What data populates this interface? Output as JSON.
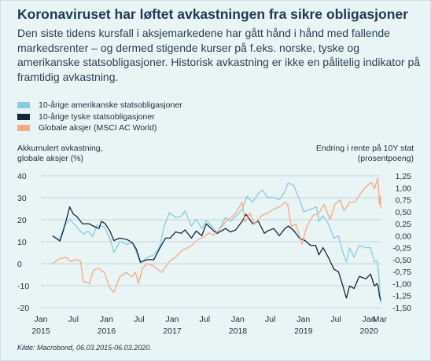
{
  "title": "Koronaviruset har løftet avkastningen fra sikre obligasjoner",
  "subtitle": "Den siste tidens kursfall i aksjemarkedene har gått hånd i hånd med fallende markedsrenter – og dermed stigende kurser på f.eks. norske, tyske og amerikanske statsobligasjoner. Historisk avkastning er ikke en pålitelig indikator på framtidig avkastning.",
  "source": "Kilde: Macrobond, 06.03.2015-06.03.2020.",
  "colors": {
    "background": "#e9f4f5",
    "us_bonds": "#86cde0",
    "de_bonds": "#14243d",
    "global_equities": "#f4ab85",
    "grid": "#c5d5d9"
  },
  "chart_data": {
    "type": "line",
    "left_axis_title": [
      "Akkumulert avkastning,",
      "globale aksjer (%)"
    ],
    "right_axis_title": [
      "Endring i rente på 10Y stat",
      "(prosentpoeng)"
    ],
    "left_ylim": [
      -20,
      40
    ],
    "left_ticks": [
      "40",
      "30",
      "20",
      "10",
      "0",
      "-10",
      "-20"
    ],
    "right_ylim": [
      -1.5,
      1.25
    ],
    "right_ticks": [
      "1,25",
      "1,00",
      "0,75",
      "0,50",
      "0,25",
      "0,00",
      "-0,25",
      "-0,50",
      "-0,75",
      "-1,00",
      "-1,25",
      "-1,50"
    ],
    "x_ticks": [
      {
        "date": "2015-01-01",
        "label": "Jan",
        "year": "2015"
      },
      {
        "date": "2015-07-01",
        "label": "Jul",
        "year": ""
      },
      {
        "date": "2016-01-01",
        "label": "Jan",
        "year": "2016"
      },
      {
        "date": "2016-07-01",
        "label": "Jul",
        "year": ""
      },
      {
        "date": "2017-01-01",
        "label": "Jan",
        "year": "2017"
      },
      {
        "date": "2017-07-01",
        "label": "Jul",
        "year": ""
      },
      {
        "date": "2018-01-01",
        "label": "Jan",
        "year": "2018"
      },
      {
        "date": "2018-07-01",
        "label": "Jul",
        "year": ""
      },
      {
        "date": "2019-01-01",
        "label": "Jan",
        "year": "2019"
      },
      {
        "date": "2019-07-01",
        "label": "Jul",
        "year": ""
      },
      {
        "date": "2020-01-01",
        "label": "Jan",
        "year": "2020"
      },
      {
        "date": "2020-03-01",
        "label": "Mar",
        "year": ""
      }
    ],
    "x_range": [
      "2015-01-01",
      "2020-03-06"
    ],
    "grid": "horizontal",
    "legend_position": "top-left",
    "series": [
      {
        "name": "10-årige amerikanske statsobligasjoner",
        "axis": "right",
        "color": "#86cde0",
        "points": [
          [
            "2015-03-06",
            0.0
          ],
          [
            "2015-04-15",
            -0.08
          ],
          [
            "2015-05-10",
            0.18
          ],
          [
            "2015-06-10",
            0.35
          ],
          [
            "2015-07-15",
            0.2
          ],
          [
            "2015-08-25",
            0.03
          ],
          [
            "2015-09-20",
            0.1
          ],
          [
            "2015-10-15",
            -0.02
          ],
          [
            "2015-11-10",
            0.22
          ],
          [
            "2015-12-20",
            0.18
          ],
          [
            "2016-01-20",
            -0.05
          ],
          [
            "2016-02-11",
            -0.35
          ],
          [
            "2016-03-15",
            -0.12
          ],
          [
            "2016-04-25",
            -0.18
          ],
          [
            "2016-05-25",
            -0.15
          ],
          [
            "2016-06-27",
            -0.45
          ],
          [
            "2016-07-08",
            -0.58
          ],
          [
            "2016-08-15",
            -0.45
          ],
          [
            "2016-09-20",
            -0.4
          ],
          [
            "2016-10-25",
            -0.22
          ],
          [
            "2016-11-15",
            0.18
          ],
          [
            "2016-12-16",
            0.48
          ],
          [
            "2017-01-20",
            0.38
          ],
          [
            "2017-02-20",
            0.4
          ],
          [
            "2017-03-13",
            0.52
          ],
          [
            "2017-04-18",
            0.2
          ],
          [
            "2017-05-15",
            0.35
          ],
          [
            "2017-06-14",
            0.15
          ],
          [
            "2017-07-10",
            0.32
          ],
          [
            "2017-08-20",
            0.15
          ],
          [
            "2017-09-08",
            0.05
          ],
          [
            "2017-10-25",
            0.38
          ],
          [
            "2017-11-20",
            0.3
          ],
          [
            "2017-12-20",
            0.4
          ],
          [
            "2018-01-25",
            0.55
          ],
          [
            "2018-02-21",
            0.82
          ],
          [
            "2018-03-25",
            0.7
          ],
          [
            "2018-04-25",
            0.88
          ],
          [
            "2018-05-17",
            0.95
          ],
          [
            "2018-06-15",
            0.8
          ],
          [
            "2018-07-20",
            0.8
          ],
          [
            "2018-08-20",
            0.75
          ],
          [
            "2018-09-20",
            0.92
          ],
          [
            "2018-10-08",
            1.1
          ],
          [
            "2018-11-08",
            1.05
          ],
          [
            "2018-12-10",
            0.75
          ],
          [
            "2019-01-03",
            0.5
          ],
          [
            "2019-02-10",
            0.55
          ],
          [
            "2019-03-15",
            0.6
          ],
          [
            "2019-03-28",
            0.3
          ],
          [
            "2019-04-20",
            0.42
          ],
          [
            "2019-05-20",
            0.25
          ],
          [
            "2019-06-20",
            -0.05
          ],
          [
            "2019-07-15",
            0.0
          ],
          [
            "2019-08-05",
            -0.3
          ],
          [
            "2019-08-28",
            -0.55
          ],
          [
            "2019-09-15",
            -0.25
          ],
          [
            "2019-10-10",
            -0.45
          ],
          [
            "2019-11-08",
            -0.2
          ],
          [
            "2019-12-15",
            -0.25
          ],
          [
            "2020-01-10",
            -0.25
          ],
          [
            "2020-01-31",
            -0.55
          ],
          [
            "2020-02-14",
            -0.52
          ],
          [
            "2020-02-21",
            -0.65
          ],
          [
            "2020-02-28",
            -1.0
          ],
          [
            "2020-03-06",
            -1.4
          ]
        ]
      },
      {
        "name": "10-årige tyske statsobligasjoner",
        "axis": "right",
        "color": "#14243d",
        "points": [
          [
            "2015-03-06",
            0.0
          ],
          [
            "2015-03-25",
            -0.05
          ],
          [
            "2015-04-17",
            -0.11
          ],
          [
            "2015-05-01",
            0.05
          ],
          [
            "2015-05-20",
            0.3
          ],
          [
            "2015-06-10",
            0.6
          ],
          [
            "2015-07-01",
            0.45
          ],
          [
            "2015-07-20",
            0.4
          ],
          [
            "2015-08-20",
            0.25
          ],
          [
            "2015-09-25",
            0.25
          ],
          [
            "2015-10-20",
            0.2
          ],
          [
            "2015-11-20",
            0.15
          ],
          [
            "2015-12-04",
            0.3
          ],
          [
            "2015-12-25",
            0.25
          ],
          [
            "2016-01-20",
            0.1
          ],
          [
            "2016-02-11",
            -0.1
          ],
          [
            "2016-03-15",
            -0.05
          ],
          [
            "2016-04-25",
            -0.08
          ],
          [
            "2016-05-25",
            -0.15
          ],
          [
            "2016-06-15",
            -0.28
          ],
          [
            "2016-07-08",
            -0.55
          ],
          [
            "2016-08-15",
            -0.5
          ],
          [
            "2016-09-20",
            -0.5
          ],
          [
            "2016-10-25",
            -0.25
          ],
          [
            "2016-11-25",
            -0.05
          ],
          [
            "2016-12-20",
            -0.05
          ],
          [
            "2017-01-20",
            0.08
          ],
          [
            "2017-02-20",
            0.05
          ],
          [
            "2017-03-13",
            0.12
          ],
          [
            "2017-04-18",
            -0.05
          ],
          [
            "2017-05-15",
            0.1
          ],
          [
            "2017-06-14",
            0.0
          ],
          [
            "2017-07-10",
            0.25
          ],
          [
            "2017-08-20",
            0.1
          ],
          [
            "2017-09-08",
            0.05
          ],
          [
            "2017-10-25",
            0.15
          ],
          [
            "2017-11-20",
            0.08
          ],
          [
            "2017-12-20",
            0.12
          ],
          [
            "2018-01-25",
            0.3
          ],
          [
            "2018-02-15",
            0.45
          ],
          [
            "2018-03-25",
            0.25
          ],
          [
            "2018-04-25",
            0.3
          ],
          [
            "2018-05-29",
            0.05
          ],
          [
            "2018-06-15",
            0.1
          ],
          [
            "2018-07-20",
            0.15
          ],
          [
            "2018-08-20",
            0.0
          ],
          [
            "2018-09-20",
            0.15
          ],
          [
            "2018-10-10",
            0.2
          ],
          [
            "2018-11-10",
            0.1
          ],
          [
            "2018-12-10",
            -0.05
          ],
          [
            "2019-01-10",
            -0.1
          ],
          [
            "2019-02-10",
            -0.2
          ],
          [
            "2019-03-10",
            -0.2
          ],
          [
            "2019-03-28",
            -0.4
          ],
          [
            "2019-04-20",
            -0.25
          ],
          [
            "2019-05-20",
            -0.45
          ],
          [
            "2019-06-20",
            -0.7
          ],
          [
            "2019-07-15",
            -0.75
          ],
          [
            "2019-08-05",
            -1.0
          ],
          [
            "2019-08-28",
            -1.3
          ],
          [
            "2019-09-15",
            -1.05
          ],
          [
            "2019-10-10",
            -1.1
          ],
          [
            "2019-11-08",
            -0.85
          ],
          [
            "2019-12-15",
            -0.9
          ],
          [
            "2020-01-10",
            -0.8
          ],
          [
            "2020-01-31",
            -1.05
          ],
          [
            "2020-02-14",
            -1.0
          ],
          [
            "2020-02-21",
            -1.05
          ],
          [
            "2020-02-28",
            -1.25
          ],
          [
            "2020-03-06",
            -1.35
          ]
        ]
      },
      {
        "name": "Globale aksjer (MSCI AC World)",
        "axis": "left",
        "color": "#f4ab85",
        "points": [
          [
            "2015-03-06",
            0
          ],
          [
            "2015-04-10",
            2
          ],
          [
            "2015-05-20",
            3
          ],
          [
            "2015-06-15",
            1
          ],
          [
            "2015-07-20",
            2
          ],
          [
            "2015-08-10",
            1
          ],
          [
            "2015-08-25",
            -8
          ],
          [
            "2015-09-29",
            -9
          ],
          [
            "2015-10-20",
            -3
          ],
          [
            "2015-11-15",
            -2
          ],
          [
            "2015-12-20",
            -4
          ],
          [
            "2016-01-20",
            -11
          ],
          [
            "2016-02-11",
            -13
          ],
          [
            "2016-03-15",
            -6
          ],
          [
            "2016-04-20",
            -4
          ],
          [
            "2016-05-20",
            -6
          ],
          [
            "2016-06-10",
            -4
          ],
          [
            "2016-06-27",
            -9
          ],
          [
            "2016-07-20",
            -2
          ],
          [
            "2016-08-15",
            0
          ],
          [
            "2016-09-20",
            -1
          ],
          [
            "2016-11-04",
            -4
          ],
          [
            "2016-12-15",
            1
          ],
          [
            "2017-01-20",
            3
          ],
          [
            "2017-02-25",
            6
          ],
          [
            "2017-04-15",
            8
          ],
          [
            "2017-05-25",
            11
          ],
          [
            "2017-06-20",
            12
          ],
          [
            "2017-07-25",
            14
          ],
          [
            "2017-08-20",
            13
          ],
          [
            "2017-09-25",
            16
          ],
          [
            "2017-10-25",
            19
          ],
          [
            "2017-11-25",
            21
          ],
          [
            "2017-12-20",
            23
          ],
          [
            "2018-01-26",
            28
          ],
          [
            "2018-02-08",
            19
          ],
          [
            "2018-03-10",
            23
          ],
          [
            "2018-04-03",
            18
          ],
          [
            "2018-05-15",
            22
          ],
          [
            "2018-06-15",
            23
          ],
          [
            "2018-07-25",
            25
          ],
          [
            "2018-08-25",
            26
          ],
          [
            "2018-09-20",
            28
          ],
          [
            "2018-10-05",
            27
          ],
          [
            "2018-10-25",
            17
          ],
          [
            "2018-11-20",
            18
          ],
          [
            "2018-12-24",
            9
          ],
          [
            "2019-01-20",
            17
          ],
          [
            "2019-02-25",
            22
          ],
          [
            "2019-03-28",
            23
          ],
          [
            "2019-04-25",
            27
          ],
          [
            "2019-05-30",
            20
          ],
          [
            "2019-06-25",
            27
          ],
          [
            "2019-07-25",
            29
          ],
          [
            "2019-08-15",
            24
          ],
          [
            "2019-09-15",
            28
          ],
          [
            "2019-10-15",
            28
          ],
          [
            "2019-11-15",
            32
          ],
          [
            "2019-12-15",
            35
          ],
          [
            "2020-01-15",
            37
          ],
          [
            "2020-01-31",
            34
          ],
          [
            "2020-02-19",
            39
          ],
          [
            "2020-02-25",
            32
          ],
          [
            "2020-02-28",
            27
          ],
          [
            "2020-03-03",
            31
          ],
          [
            "2020-03-06",
            25
          ]
        ]
      }
    ]
  }
}
